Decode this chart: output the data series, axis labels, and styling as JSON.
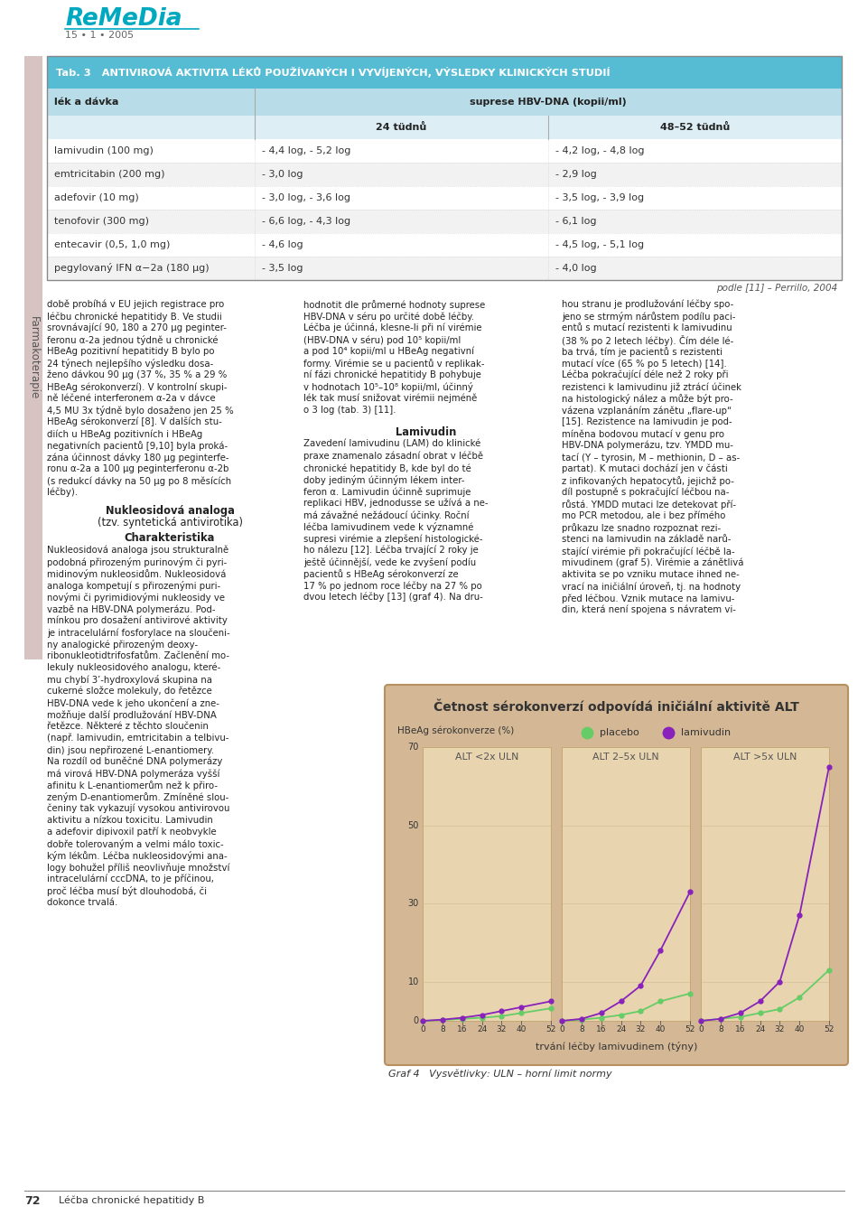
{
  "page_title": "ReMeDia",
  "page_subtitle": "15 • 1 • 2005",
  "table_title": "Tab. 3   ANTIVIROVÁ AKTIVITA LÉKŮ POUŽÍVANÝCH I VYVÍJENÝCH, VÝSLEDKY KLINICKÝCH STUDIÍ",
  "table_header1": "lék a dávka",
  "table_header2": "suprese HBV-DNA (kopii/ml)",
  "table_col1": "24 tüdnů",
  "table_col2": "48–52 tüdnů",
  "table_rows": [
    [
      "lamivudin (100 mg)",
      "- 4,4 log, - 5,2 log",
      "- 4,2 log, - 4,8 log"
    ],
    [
      "emtricitabin (200 mg)",
      "- 3,0 log",
      "- 2,9 log"
    ],
    [
      "adefovir (10 mg)",
      "- 3,0 log, - 3,6 log",
      "- 3,5 log, - 3,9 log"
    ],
    [
      "tenofovir (300 mg)",
      "- 6,6 log, - 4,3 log",
      "- 6,1 log"
    ],
    [
      "entecavir (0,5, 1,0 mg)",
      "- 4,6 log",
      "- 4,5 log, - 5,1 log"
    ],
    [
      "pegylovaný IFN α−2a (180 µg)",
      "- 3,5 log",
      "- 4,0 log"
    ]
  ],
  "table_note": "podle [11] – Perrillo, 2004",
  "sidebar_text": "Farmakoterapie",
  "sidebar_color": "#c4a4a4",
  "table_header_bg": "#55bcd4",
  "table_subheader_bg": "#b8dde8",
  "table_col_bg": "#ddeef5",
  "table_row_bg_even": "#ffffff",
  "table_row_bg_odd": "#f2f2f2",
  "col2_title": "Lamivudin",
  "graph_title": "Četnost sérokonverzí odpovídá iničiální aktivitě ALT",
  "graph_ylabel": "HBeAg sérokonverze (%)",
  "graph_xlabel": "trvání léčby lamivudinem (týny)",
  "legend_placebo": "placebo",
  "legend_lamivudin": "lamivudin",
  "panel_labels": [
    "ALT <2x ULN",
    "ALT 2–5x ULN",
    "ALT >5x ULN"
  ],
  "x_ticks": [
    0,
    8,
    16,
    24,
    32,
    40,
    52
  ],
  "y_ticks": [
    0,
    10,
    30,
    50,
    70
  ],
  "placebo_color": "#66cc66",
  "lamivudin_color": "#8822bb",
  "graph_bg_color": "#d4b896",
  "graph_border_color": "#b89060",
  "placebo_data_p1": [
    [
      0,
      0
    ],
    [
      8,
      0.2
    ],
    [
      16,
      0.5
    ],
    [
      24,
      0.8
    ],
    [
      32,
      1.2
    ],
    [
      40,
      2.0
    ],
    [
      52,
      3.2
    ]
  ],
  "placebo_data_p2": [
    [
      0,
      0
    ],
    [
      8,
      0.3
    ],
    [
      16,
      0.8
    ],
    [
      24,
      1.5
    ],
    [
      32,
      2.5
    ],
    [
      40,
      5.0
    ],
    [
      52,
      7.0
    ]
  ],
  "placebo_data_p3": [
    [
      0,
      0
    ],
    [
      8,
      0.5
    ],
    [
      16,
      1.0
    ],
    [
      24,
      2.0
    ],
    [
      32,
      3.0
    ],
    [
      40,
      6.0
    ],
    [
      52,
      13.0
    ]
  ],
  "lamivudin_data_p1": [
    [
      0,
      0
    ],
    [
      8,
      0.3
    ],
    [
      16,
      0.8
    ],
    [
      24,
      1.5
    ],
    [
      32,
      2.5
    ],
    [
      40,
      3.5
    ],
    [
      52,
      5.0
    ]
  ],
  "lamivudin_data_p2": [
    [
      0,
      0
    ],
    [
      8,
      0.5
    ],
    [
      16,
      2.0
    ],
    [
      24,
      5.0
    ],
    [
      32,
      9.0
    ],
    [
      40,
      18.0
    ],
    [
      52,
      33.0
    ]
  ],
  "lamivudin_data_p3": [
    [
      0,
      0
    ],
    [
      8,
      0.5
    ],
    [
      16,
      2.0
    ],
    [
      24,
      5.0
    ],
    [
      32,
      10.0
    ],
    [
      40,
      27.0
    ],
    [
      52,
      65.0
    ]
  ],
  "footer_caption": "Graf 4   Vysvětlivky: ULN – horní limit normy",
  "page_footer_num": "72",
  "page_footer_text": "Léčba chronické hepatitidy B",
  "body_col1_lines": [
    "době probíhá v EU jejich registrace pro",
    "léčbu chronické hepatitidy B. Ve studii",
    "srovnávající 90, 180 a 270 μg peginter-",
    "feronu α-2a jednou týdně u chronické",
    "HBeAg pozitivní hepatitidy B bylo po",
    "24 týnech nejlepšího výsledku dosa-",
    "ženo dávkou 90 μg (37 %, 35 % a 29 %",
    "HBeAg sérokonverzí). V kontrolní skupi-",
    "ně léčené interferonem α-2a v dávce",
    "4,5 MU 3x týdně bylo dosaženo jen 25 %",
    "HBeAg sérokonverzí [8]. V dalších stu-",
    "diích u HBeAg pozitivních i HBeAg",
    "negativních pacientů [9,10] byla proká-",
    "zána účinnost dávky 180 μg peginterfe-",
    "ronu α-2a a 100 μg peginterferonu α-2b",
    "(s redukcí dávky na 50 μg po 8 měsících",
    "léčby)."
  ],
  "nukleo_heading1": "Nukleosidová analoga",
  "nukleo_heading2": "(tzv. syntetická antivirotika)",
  "nukleo_heading3": "Charakteristika",
  "body_col1_lines2": [
    "Nukleosidová analoga jsou strukturalně",
    "podobná přirozeným purinovým či pyri-",
    "midinovým nukleosidům. Nukleosidová",
    "analoga kompetují s přirozenými puri-",
    "novými či pyrimidiovými nukleosidy ve",
    "vazbě na HBV-DNA polymerázu. Pod-",
    "mínkou pro dosažení antivirové aktivity",
    "je intracelulární fosforylace na sloučeni-",
    "ny analogické přirozeným deoxy-",
    "ribonukleotidtrifosfatům. Začlenění mo-",
    "lekuly nukleosidového analogu, které-",
    "mu chybí 3’-hydroxylová skupina na",
    "cukerné složce molekuly, do řetězce",
    "HBV-DNA vede k jeho ukončení a zne-",
    "možňuje další prodlužování HBV-DNA",
    "řetězce. Některé z těchto sloučenin",
    "(např. lamivudin, emtricitabin a telbivu-",
    "din) jsou nepřirozené L-enantiomery.",
    "Na rozdíl od buněčné DNA polymerázy",
    "má virová HBV-DNA polymeráza vyšší",
    "afinitu k L-enantiomerům než k přiro-",
    "zeným D-enantiomerům. Zmíněné slou-",
    "čeniny tak vykazují vysokou antivirovou",
    "aktivitu a nízkou toxicitu. Lamivudin",
    "a adefovir dipivoxil patří k neobvykle",
    "dobře tolerovaným a velmi málo toxic-",
    "kým lékům. Léčba nukleosidovými ana-",
    "logy bohužel příliš neovlivňuje množství",
    "intracelulární cccDNA, to je příčinou,",
    "proč léčba musí být dlouhodobá, či",
    "dokonce trvalá."
  ],
  "body_col2_lines1": [
    "hodnotit dle průmerné hodnoty suprese",
    "HBV-DNA v séru po určité době léčby.",
    "Léčba je účinná, klesne-li při ní virémie",
    "(HBV-DNA v séru) pod 10⁵ kopii/ml",
    "a pod 10⁴ kopii/ml u HBeAg negativní",
    "formy. Virémie se u pacientů v replikak-",
    "ní fázi chronické hepatitidy B pohybuje",
    "v hodnotach 10⁵–10⁸ kopii/ml, účinný",
    "lék tak musí snižovat virémii nejméně",
    "o 3 log (tab. 3) [11]."
  ],
  "body_col2_lines2": [
    "Zavedení lamivudinu (LAM) do klinické",
    "praxe znamenalo zásadní obrat v léčbě",
    "chronické hepatitidy B, kde byl do té",
    "doby jediným účinným lékem inter-",
    "feron α. Lamivudin účinně suprimuje",
    "replikaci HBV, jednodusse se užívá a ne-",
    "má závažné nežádoucí účinky. Roční",
    "léčba lamivudinem vede k významné",
    "supresi virémie a zlepšení histologické-",
    "ho nálezu [12]. Léčba trvající 2 roky je",
    "ještě účinnější, vede ke zvyšení podíu",
    "pacientů s HBeAg sérokonverzí ze",
    "17 % po jednom roce léčby na 27 % po",
    "dvou letech léčby [13] (graf 4). Na dru-"
  ],
  "body_col3_lines": [
    "hou stranu je prodlužování léčby spo-",
    "jeno se strmým nárůstem podílu paci-",
    "entů s mutací rezistenti k lamivudinu",
    "(38 % po 2 letech léčby). Čím déle lé-",
    "ba trvá, tím je pacientů s rezistenti",
    "mutací více (65 % po 5 letech) [14].",
    "Léčba pokračující déle než 2 roky při",
    "rezistenci k lamivudinu již ztrácí účinek",
    "na histologický nález a může být pro-",
    "vázena vzplanáním zánětu „flare-up“",
    "[15]. Rezistence na lamivudin je pod-",
    "míněna bodovou mutací v genu pro",
    "HBV-DNA polymerázu, tzv. YMDD mu-",
    "tací (Y – tyrosin, M – methionin, D – as-",
    "partat). K mutaci dochází jen v části",
    "z infikovaných hepatocytů, jejichž po-",
    "díl postupně s pokračující léčbou na-",
    "růstá. YMDD mutaci lze detekovat pří-",
    "mo PCR metodou, ale i bez přímého",
    "průkazu lze snadno rozpoznat rezi-",
    "stenci na lamivudin na základě narů-",
    "stající virémie při pokračující léčbě la-",
    "mivudinem (graf 5). Virémie a zánětlivá",
    "aktivita se po vzniku mutace ihned ne-",
    "vrací na iničiální úroveň, tj. na hodnoty",
    "před léčbou. Vznik mutace na lamivu-",
    "din, která není spojena s návratem vi-"
  ]
}
